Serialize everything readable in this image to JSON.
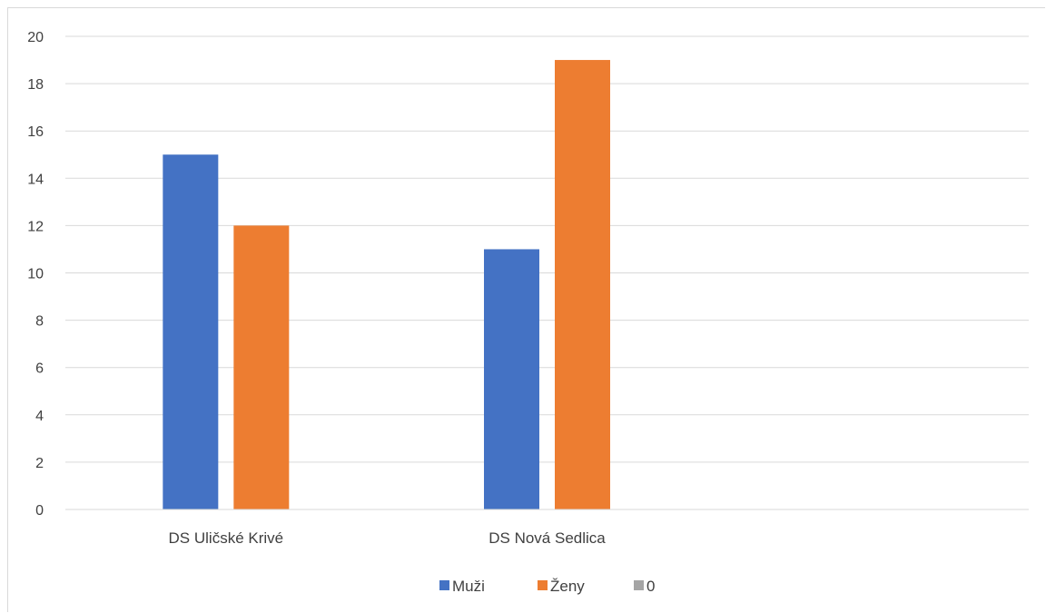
{
  "chart_data": {
    "type": "bar",
    "categories": [
      "DS Uličské Krivé",
      "DS Nová Sedlica",
      ""
    ],
    "series": [
      {
        "name": "Muži",
        "values": [
          15,
          11,
          0
        ],
        "color": "#4472C4"
      },
      {
        "name": "Ženy",
        "values": [
          12,
          19,
          0
        ],
        "color": "#ED7D31"
      },
      {
        "name": "0",
        "values": [
          0,
          0,
          0
        ],
        "color": "#A5A5A5"
      }
    ],
    "ylim": [
      0,
      20
    ],
    "yticks": [
      0,
      2,
      4,
      6,
      8,
      10,
      12,
      14,
      16,
      18,
      20
    ],
    "grid": true,
    "legend": "bottom"
  }
}
